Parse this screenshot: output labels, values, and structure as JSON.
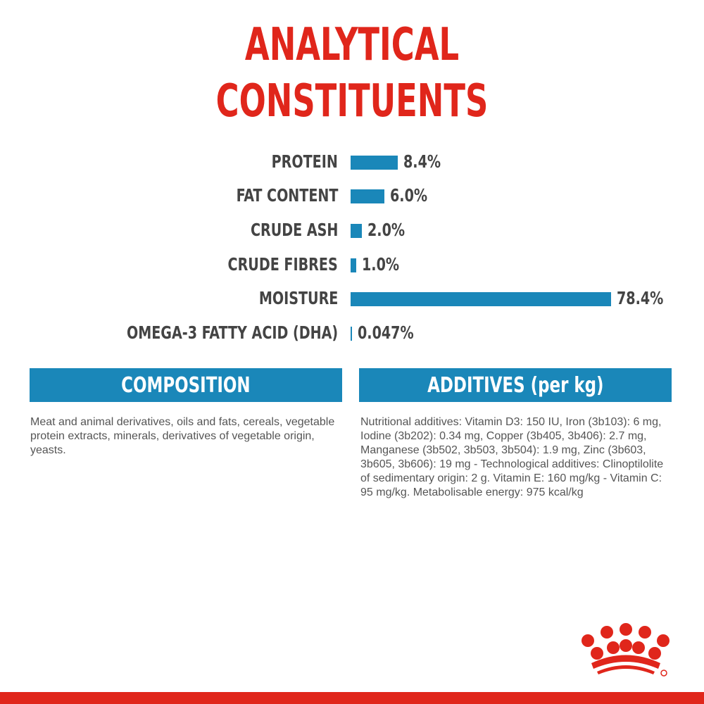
{
  "title_lines": [
    "ANALYTICAL",
    "CONSTITUENTS"
  ],
  "chart_data": {
    "type": "bar",
    "orientation": "horizontal",
    "categories": [
      "PROTEIN",
      "FAT CONTENT",
      "CRUDE ASH",
      "CRUDE FIBRES",
      "MOISTURE",
      "OMEGA-3 FATTY ACID (DHA)"
    ],
    "values": [
      8.4,
      6.0,
      2.0,
      1.0,
      78.4,
      0.047
    ],
    "value_labels": [
      "8.4%",
      "6.0%",
      "2.0%",
      "1.0%",
      "78.4%",
      "0.047%"
    ],
    "bar_color": "#1a87b9"
  },
  "composition": {
    "heading": "COMPOSITION",
    "text": "Meat and animal derivatives, oils and fats, cereals, vegetable protein extracts, minerals, derivatives of vegetable origin, yeasts."
  },
  "additives": {
    "heading": "ADDITIVES (per kg)",
    "text": "Nutritional additives: Vitamin D3: 150 IU, Iron (3b103): 6 mg, Iodine (3b202): 0.34 mg, Copper (3b405, 3b406): 2.7 mg, Manganese (3b502, 3b503, 3b504): 1.9 mg, Zinc (3b603, 3b605, 3b606): 19 mg - Technological additives: Clinoptilolite of sedimentary origin: 2 g. Vitamin E: 160 mg/kg - Vitamin C: 95 mg/kg. Metabolisable energy: 975 kcal/kg"
  },
  "colors": {
    "brand_red": "#e0261b",
    "accent_blue": "#1a87b9"
  },
  "logo": "royal-crown-logo"
}
